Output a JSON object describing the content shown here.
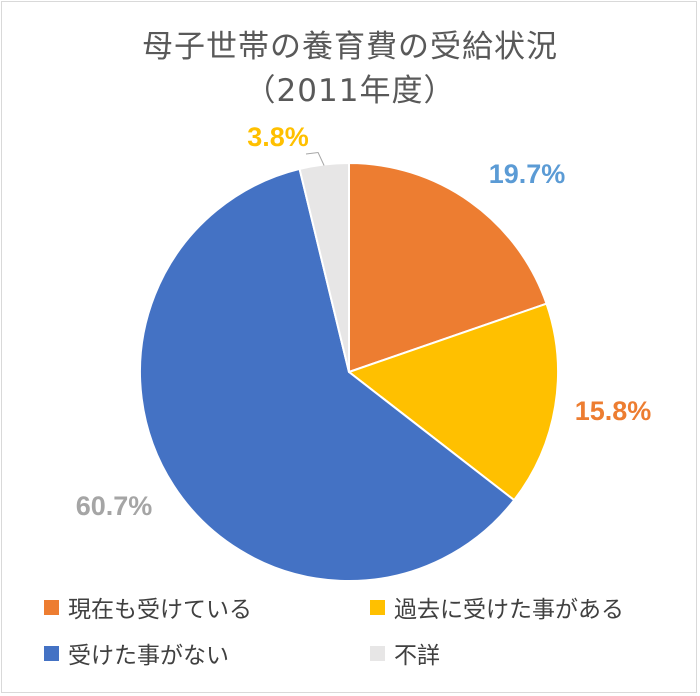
{
  "chart_data": {
    "type": "pie",
    "title": "母子世帯の養育費の受給状況",
    "subtitle": "（2011年度）",
    "slices": [
      {
        "label": "現在も受けている",
        "value": 19.7,
        "display": "19.7%",
        "color": "#ED7D31",
        "label_color": "#5B9BD5"
      },
      {
        "label": "過去に受けた事がある",
        "value": 15.8,
        "display": "15.8%",
        "color": "#FFC000",
        "label_color": "#ED7D31"
      },
      {
        "label": "受けた事がない",
        "value": 60.7,
        "display": "60.7%",
        "color": "#4472C4",
        "label_color": "#A5A5A5"
      },
      {
        "label": "不詳",
        "value": 3.8,
        "display": "3.8%",
        "color": "#E7E6E6",
        "label_color": "#FFC000"
      }
    ],
    "legend": [
      {
        "label": "現在も受けている",
        "color": "#ED7D31"
      },
      {
        "label": "過去に受けた事がある",
        "color": "#FFC000"
      },
      {
        "label": "受けた事がない",
        "color": "#4472C4"
      },
      {
        "label": "不詳",
        "color": "#E7E6E6"
      }
    ],
    "legend_position": "bottom"
  }
}
